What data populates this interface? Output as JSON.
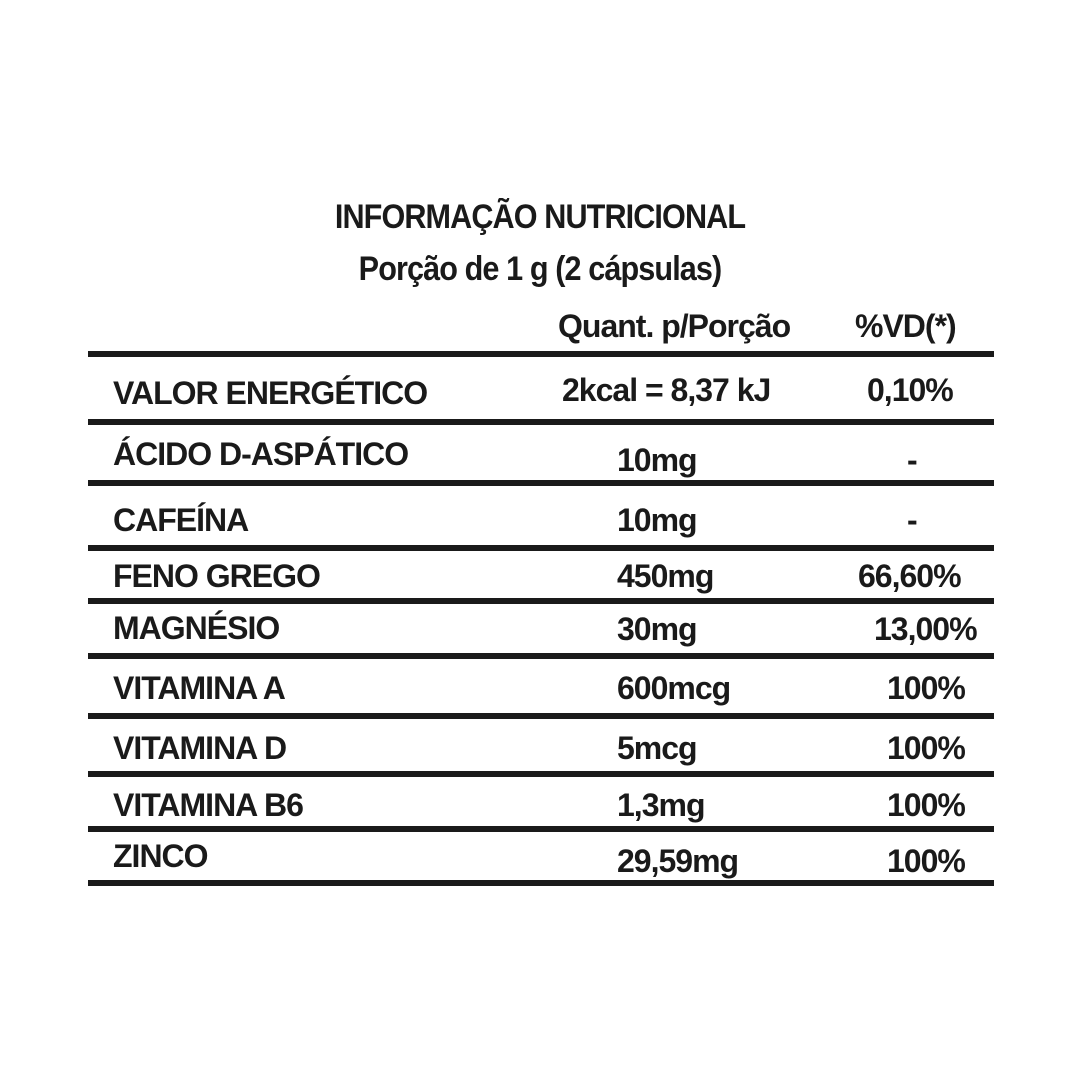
{
  "title": "INFORMAÇÃO NUTRICIONAL",
  "portion": "Porção de 1 g (2 cápsulas)",
  "headers": {
    "quantity": "Quant. p/Porção",
    "dv": "%VD(*)"
  },
  "rows": [
    {
      "name": "VALOR ENERGÉTICO",
      "quantity": "2kcal =  8,37 kJ",
      "dv": "0,10%"
    },
    {
      "name": "ÁCIDO D-ASPÁTICO",
      "quantity": "10mg",
      "dv": "-"
    },
    {
      "name": "CAFEÍNA",
      "quantity": "10mg",
      "dv": "-"
    },
    {
      "name": "FENO GREGO",
      "quantity": "450mg",
      "dv": "66,60%"
    },
    {
      "name": "MAGNÉSIO",
      "quantity": "30mg",
      "dv": "13,00%"
    },
    {
      "name": "VITAMINA A",
      "quantity": "600mcg",
      "dv": "100%"
    },
    {
      "name": "VITAMINA D",
      "quantity": "5mcg",
      "dv": "100%"
    },
    {
      "name": "VITAMINA B6",
      "quantity": "1,3mg",
      "dv": "100%"
    },
    {
      "name": "ZINCO",
      "quantity": "29,59mg",
      "dv": "100%"
    }
  ]
}
